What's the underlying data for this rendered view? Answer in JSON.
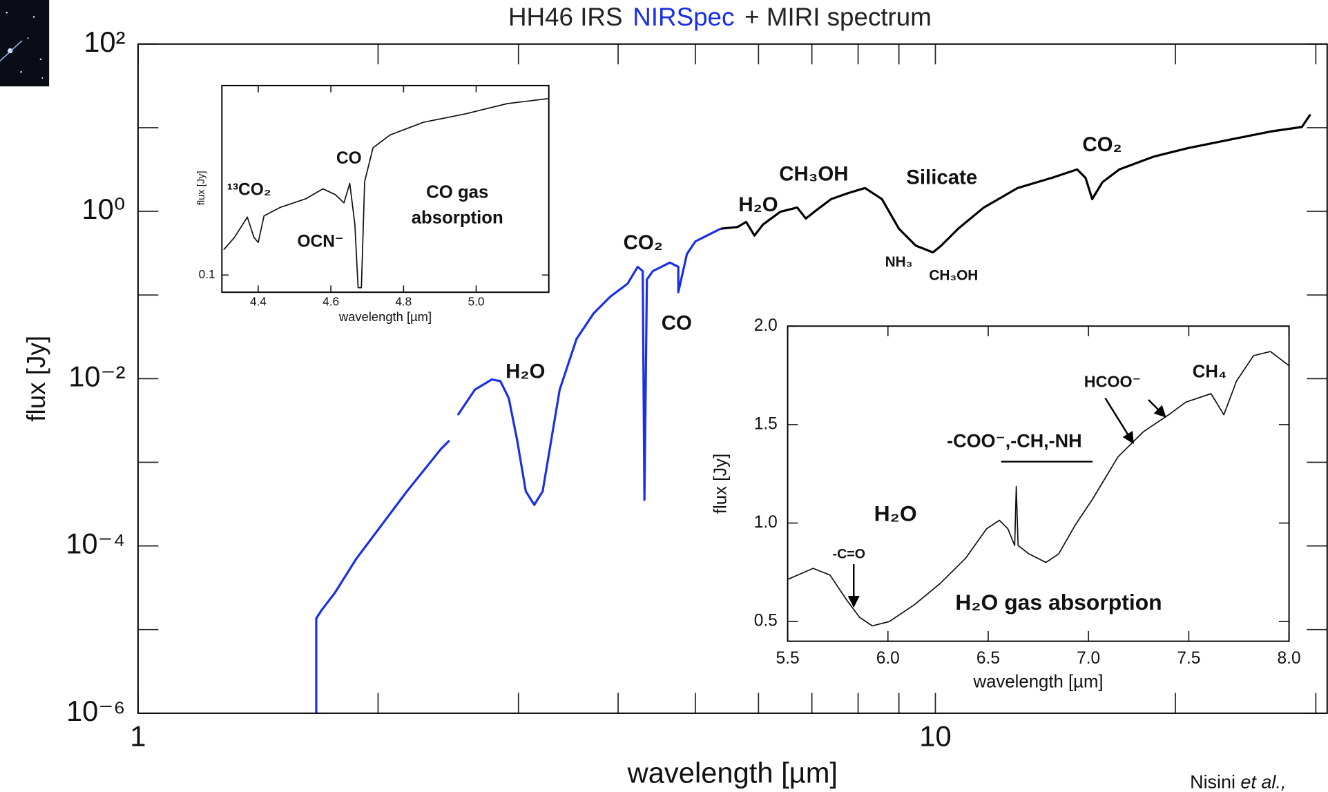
{
  "chart_data": [
    {
      "type": "line",
      "title_parts": [
        {
          "text": "HH46 IRS",
          "color": "#222222"
        },
        {
          "text": "NIRSpec",
          "color": "#1a2fe6"
        },
        {
          "text": "+ MIRI spectrum",
          "color": "#222222"
        }
      ],
      "xlabel": "wavelength [µm]",
      "ylabel": "flux [Jy]",
      "xscale": "log",
      "yscale": "log",
      "xlim": [
        1,
        31
      ],
      "ylim": [
        1e-06,
        100
      ],
      "xticks": [
        1,
        10
      ],
      "minor_xticks": [
        2,
        3,
        4,
        5,
        6,
        7,
        8,
        9,
        20,
        30
      ],
      "yticks": [
        {
          "value": 1e-06,
          "label": "10⁻⁶"
        },
        {
          "value": 0.0001,
          "label": "10⁻⁴"
        },
        {
          "value": 0.01,
          "label": "10⁻²"
        },
        {
          "value": 1,
          "label": "10⁰"
        },
        {
          "value": 100,
          "label": "10²"
        }
      ],
      "minor_yticks": [
        1e-05,
        0.001,
        0.1,
        10
      ],
      "series": [
        {
          "color": "#1a2fe6",
          "x": [
            1.673,
            1.673,
            1.7,
            1.765,
            1.877,
            2.02,
            2.174,
            2.398,
            2.457,
            2.49,
            2.518,
            2.645,
            2.777,
            2.847,
            2.917,
            2.989,
            3.064,
            3.14,
            3.217,
            3.297,
            3.379,
            3.548,
            3.727,
            3.913,
            4.11,
            4.233,
            4.295,
            4.316,
            4.347,
            4.422,
            4.645,
            4.76,
            4.76,
            4.879,
            5.0,
            5.25,
            5.38
          ],
          "values": [
            1e-06,
            1.36e-05,
            1.72e-05,
            2.74e-05,
            6.97e-05,
            0.000177,
            0.00045,
            0.00144,
            0.00182,
            null,
            0.00367,
            0.00738,
            0.00977,
            0.00933,
            0.00585,
            0.00182,
            0.00045,
            0.00031,
            0.00045,
            0.00182,
            0.00738,
            0.0299,
            0.0603,
            0.096,
            0.136,
            0.217,
            0.193,
            0.000356,
            0.153,
            0.193,
            0.244,
            0.217,
            0.108,
            0.308,
            0.437,
            0.552,
            0.62
          ]
        },
        {
          "color": "#000000",
          "x": [
            5.38,
            5.65,
            5.79,
            5.93,
            6.08,
            6.39,
            6.71,
            6.88,
            7.05,
            7.4,
            7.77,
            8.16,
            8.57,
            9.0,
            9.45,
            9.93,
            10.17,
            10.68,
            11.5,
            12.68,
            13.99,
            15.06,
            15.43,
            15.73,
            16.2,
            17.01,
            18.77,
            20.7,
            23.39,
            26.44,
            28.82,
            29.53
          ],
          "values": [
            0.62,
            0.65,
            0.747,
            0.514,
            0.697,
            0.988,
            1.11,
            0.82,
            0.988,
            1.4,
            1.65,
            1.9,
            1.4,
            0.62,
            0.389,
            0.323,
            0.389,
            0.62,
            1.11,
            1.9,
            2.51,
            3.17,
            2.51,
            1.4,
            2.23,
            3.17,
            4.5,
            5.68,
            7.18,
            9.06,
            10.2,
            14.4
          ]
        }
      ],
      "annotations": [
        "H₂O",
        "CO₂",
        "CO",
        "H₂O",
        "CH₃OH",
        "Silicate",
        "NH₃",
        "CH₃OH",
        "CO₂"
      ]
    },
    {
      "type": "line",
      "xlabel": "wavelength [µm]",
      "ylabel": "flux [Jy]",
      "xscale": "linear",
      "yscale": "log",
      "xlim": [
        4.3,
        5.2
      ],
      "ylim": [
        0.085,
        0.6
      ],
      "xticks": [
        4.4,
        4.6,
        4.8,
        {
          "value": 5,
          "label": "5.0"
        }
      ],
      "yticks": [
        0.1
      ],
      "series": [
        {
          "color": "#111111",
          "x": [
            4.305,
            4.335,
            4.37,
            4.388,
            4.4,
            4.416,
            4.462,
            4.532,
            4.578,
            4.612,
            4.636,
            4.652,
            4.666,
            4.675,
            4.684,
            4.693,
            4.716,
            4.763,
            4.855,
            4.97,
            5.086,
            5.197
          ],
          "values": [
            0.127,
            0.143,
            0.173,
            0.143,
            0.136,
            0.175,
            0.19,
            0.206,
            0.226,
            0.214,
            0.198,
            0.238,
            0.162,
            0.0887,
            0.0887,
            0.242,
            0.333,
            0.376,
            0.424,
            0.459,
            0.506,
            0.53
          ]
        }
      ],
      "annotations": [
        "¹³CO₂",
        "CO",
        "OCN⁻",
        "CO gas",
        "absorption"
      ]
    },
    {
      "type": "line",
      "xlabel": "wavelength [µm]",
      "ylabel": "flux [Jy]",
      "xscale": "linear",
      "yscale": "linear",
      "xlim": [
        5.5,
        8.0
      ],
      "ylim": [
        0.4,
        2.0
      ],
      "xticks": [
        5.5,
        {
          "value": 6,
          "label": "6.0"
        },
        6.5,
        {
          "value": 7,
          "label": "7.0"
        },
        7.5,
        {
          "value": 8,
          "label": "8.0"
        }
      ],
      "yticks": [
        0.5,
        {
          "value": 1,
          "label": "1.0"
        },
        1.5,
        {
          "value": 2,
          "label": "2.0"
        }
      ],
      "series": [
        {
          "color": "#111111",
          "x": [
            5.5,
            5.627,
            5.711,
            5.796,
            5.859,
            5.922,
            6.007,
            6.133,
            6.26,
            6.387,
            6.492,
            6.556,
            6.598,
            6.632,
            6.64,
            6.649,
            6.704,
            6.788,
            6.851,
            6.936,
            7.02,
            7.147,
            7.274,
            7.4,
            7.485,
            7.611,
            7.675,
            7.738,
            7.823,
            7.907,
            8.0
          ],
          "values": [
            0.714,
            0.77,
            0.736,
            0.607,
            0.521,
            0.478,
            0.5,
            0.586,
            0.693,
            0.821,
            0.971,
            1.014,
            0.971,
            0.886,
            1.186,
            0.886,
            0.843,
            0.8,
            0.843,
            0.993,
            1.121,
            1.336,
            1.464,
            1.55,
            1.614,
            1.657,
            1.55,
            1.721,
            1.85,
            1.871,
            1.799
          ]
        }
      ],
      "annotations": [
        "HCOO⁻",
        "CH₄",
        "-COO⁻,-CH,-NH",
        "H₂O",
        "-C=O",
        "H₂O gas absorption"
      ]
    }
  ],
  "credit": [
    "Nisini",
    "et al.,"
  ]
}
